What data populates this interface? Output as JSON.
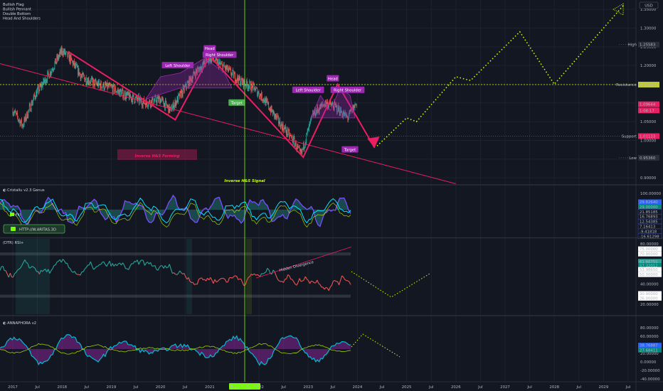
{
  "currency_button": "USD",
  "legend_items": [
    "Bullish Flag",
    "Bullish Pennant",
    "Double Bottom",
    "Head And Shoulders"
  ],
  "chart_data": [
    {
      "type": "line",
      "panel": "price",
      "y_axis_ticks": [
        "1.35000",
        "1.30000",
        "1.25000",
        "1.20000",
        "1.15000",
        "1.10000",
        "1.05000",
        "1.00000",
        "0.95000",
        "0.90000"
      ],
      "ylim": [
        0.885,
        1.375
      ],
      "price_labels": [
        {
          "tag": "High",
          "value": 1.25583,
          "text": "1.25583",
          "color": "#131722"
        },
        {
          "tag": "Resistance",
          "value": 1.14893,
          "text": "1.14893",
          "color": "#c0ca33"
        },
        {
          "tag": "",
          "value": 1.09644,
          "text": "1.09644",
          "color": "#e91e63"
        },
        {
          "tag": "",
          "value": 1.08,
          "text": "1:08:17",
          "color": "#e91e63"
        },
        {
          "tag": "Support",
          "value": 1.01133,
          "text": "1.01133",
          "color": "#e91e63"
        },
        {
          "tag": "Low",
          "value": 0.9536,
          "text": "0.95360",
          "color": "#131722"
        }
      ],
      "patterns": [
        {
          "label": "Left Shoulder"
        },
        {
          "label": "Head"
        },
        {
          "label": "Right Shoulder"
        },
        {
          "label": "Target"
        },
        {
          "label": "Left Shoulder"
        },
        {
          "label": "Head"
        },
        {
          "label": "Right Shoulder"
        },
        {
          "label": "Target"
        }
      ],
      "annotations": [
        "Inverse H&S Forming",
        "Inverse H&S Signal"
      ]
    },
    {
      "type": "area",
      "panel": "oscillator-1",
      "title": "Cristallu v2.3 Genus",
      "y_axis_ticks": [
        "100.00000"
      ],
      "value_labels": [
        "29.82640",
        "29.00000",
        "21.85185",
        "16.76893",
        "12.54385",
        "7.16413",
        "-9.41818",
        "-16.61298"
      ],
      "badge_text": "HTTP://W.ARITAS.3D"
    },
    {
      "type": "line",
      "panel": "rsi",
      "title": "(DTR) RSI+",
      "y_axis_ticks": [
        "80.00000",
        "70.00000",
        "60.00000",
        "50.00000",
        "40.00000",
        "30.00000",
        "20.00000"
      ],
      "value_labels": [
        "75.00000",
        "70.00000",
        "61.66751",
        "57.32012",
        "53.98650",
        "50.00000",
        "30.00000",
        "26.00000"
      ],
      "annotation": "Hidden Divergence"
    },
    {
      "type": "area",
      "panel": "oscillator-2",
      "title": "ANNAPHORA v2",
      "y_axis_ticks": [
        "80.00000",
        "60.00000",
        "40.00000",
        "20.00000",
        "0.00000",
        "-20.00000",
        "-40.00000"
      ],
      "value_labels": [
        "38.76887",
        "27.68411"
      ]
    }
  ],
  "x_axis_labels": [
    "2017",
    "Jul",
    "2018",
    "Jul",
    "2019",
    "Jul",
    "2020",
    "Jul",
    "2021",
    "Jul",
    "2022",
    "Jul",
    "2023",
    "Jul",
    "2024",
    "Jul",
    "2025",
    "Jul",
    "2026",
    "Jul",
    "2027",
    "Jul",
    "2028",
    "Jul",
    "2029",
    "Jul"
  ],
  "cursor_date_label": "Mon 01 Oct '21",
  "colors": {
    "background": "#131722",
    "pink": "#e91e63",
    "magenta": "#9c27b0",
    "lime": "#c6ff00",
    "green": "#4caf50",
    "candle_up": "#26a69a",
    "candle_down": "#ef5350"
  }
}
